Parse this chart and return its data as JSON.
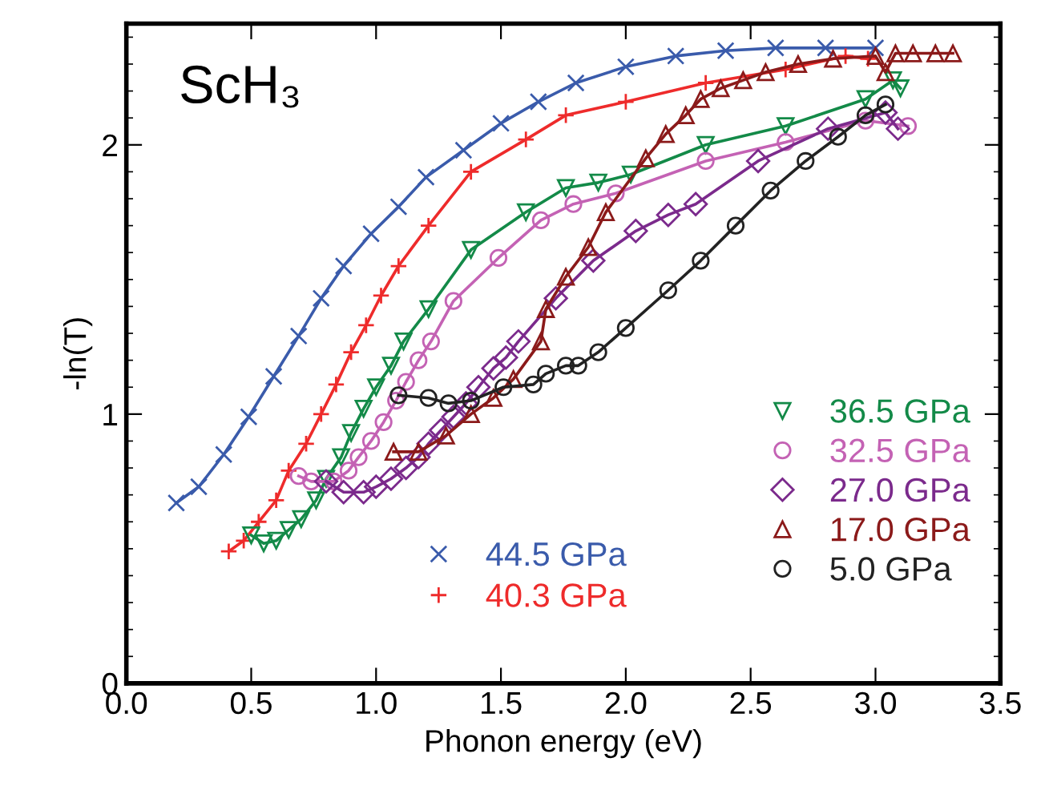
{
  "chart_data": {
    "type": "line",
    "xlabel": "Phonon energy (eV)",
    "ylabel": "-ln(T)",
    "xlim": [
      0,
      3.5
    ],
    "xticks": [
      {
        "value": 0,
        "label": "0.0"
      },
      0.5,
      {
        "value": 1,
        "label": "1.0"
      },
      1.5,
      {
        "value": 2,
        "label": "2.0"
      },
      2.5,
      {
        "value": 3,
        "label": "3.0"
      },
      3.5
    ],
    "ylim": [
      0,
      2.45
    ],
    "yticks": [
      0,
      1,
      2
    ],
    "grid": false,
    "legend": "bottom right",
    "annotations": [
      "ScH₃"
    ],
    "series": [
      {
        "name": "44.5 GPa",
        "color": "#3a5bab",
        "marker": "x",
        "x": [
          0.2,
          0.29,
          0.39,
          0.49,
          0.59,
          0.69,
          0.78,
          0.87,
          0.98,
          1.09,
          1.2,
          1.35,
          1.5,
          1.65,
          1.8,
          2.0,
          2.2,
          2.4,
          2.6,
          2.8,
          3.0
        ],
        "values": [
          0.67,
          0.73,
          0.85,
          0.99,
          1.14,
          1.29,
          1.43,
          1.55,
          1.67,
          1.77,
          1.88,
          1.98,
          2.08,
          2.16,
          2.23,
          2.29,
          2.33,
          2.35,
          2.36,
          2.36,
          2.36
        ]
      },
      {
        "name": "40.3 GPa",
        "color": "#ee2b2b",
        "marker": "plus",
        "x": [
          0.41,
          0.47,
          0.53,
          0.6,
          0.65,
          0.72,
          0.78,
          0.84,
          0.9,
          0.96,
          1.02,
          1.09,
          1.21,
          1.38,
          1.6,
          1.76,
          2.0,
          2.32,
          2.64,
          2.88,
          2.97
        ],
        "values": [
          0.49,
          0.53,
          0.6,
          0.68,
          0.79,
          0.89,
          1.0,
          1.11,
          1.23,
          1.33,
          1.44,
          1.55,
          1.7,
          1.9,
          2.02,
          2.11,
          2.16,
          2.23,
          2.28,
          2.33,
          2.32
        ]
      },
      {
        "name": "36.5 GPa",
        "color": "#138a48",
        "marker": "triangle_down",
        "x": [
          0.5,
          0.55,
          0.6,
          0.65,
          0.7,
          0.76,
          0.8,
          0.86,
          0.9,
          0.95,
          1.0,
          1.06,
          1.11,
          1.21,
          1.38,
          1.6,
          1.76,
          1.89,
          2.02,
          2.32,
          2.64,
          2.96,
          3.07,
          3.1
        ],
        "values": [
          0.55,
          0.52,
          0.53,
          0.57,
          0.61,
          0.68,
          0.76,
          0.84,
          0.93,
          1.02,
          1.1,
          1.18,
          1.27,
          1.39,
          1.61,
          1.75,
          1.84,
          1.86,
          1.89,
          2.0,
          2.07,
          2.17,
          2.24,
          2.21
        ]
      },
      {
        "name": "32.5 GPa",
        "color": "#c462b4",
        "marker": "circle",
        "x": [
          0.69,
          0.74,
          0.83,
          0.89,
          0.93,
          0.98,
          1.03,
          1.08,
          1.12,
          1.17,
          1.22,
          1.31,
          1.49,
          1.66,
          1.79,
          1.96,
          2.32,
          2.64,
          2.96,
          3.13
        ],
        "values": [
          0.77,
          0.75,
          0.75,
          0.79,
          0.84,
          0.9,
          0.97,
          1.05,
          1.12,
          1.2,
          1.27,
          1.42,
          1.58,
          1.72,
          1.78,
          1.82,
          1.94,
          2.01,
          2.09,
          2.07
        ]
      },
      {
        "name": "27.0 GPa",
        "color": "#7b2a8c",
        "marker": "diamond",
        "x": [
          0.8,
          0.87,
          0.95,
          1.0,
          1.06,
          1.12,
          1.17,
          1.21,
          1.26,
          1.31,
          1.36,
          1.41,
          1.47,
          1.52,
          1.57,
          1.72,
          1.87,
          2.04,
          2.17,
          2.28,
          2.53,
          2.81,
          3.04,
          3.09
        ],
        "values": [
          0.75,
          0.71,
          0.71,
          0.73,
          0.76,
          0.8,
          0.84,
          0.89,
          0.94,
          0.99,
          1.04,
          1.1,
          1.17,
          1.21,
          1.27,
          1.43,
          1.57,
          1.68,
          1.74,
          1.78,
          1.94,
          2.06,
          2.12,
          2.06
        ]
      },
      {
        "name": "17.0 GPa",
        "color": "#8b1a1a",
        "marker": "triangle",
        "x": [
          1.07,
          1.17,
          1.28,
          1.38,
          1.47,
          1.55,
          1.66,
          1.68,
          1.76,
          1.85,
          1.92,
          2.08,
          2.16,
          2.24,
          2.3,
          2.38,
          2.47,
          2.56,
          2.69,
          2.83,
          3.0,
          3.04,
          3.08,
          3.15,
          3.24,
          3.31
        ],
        "values": [
          0.86,
          0.86,
          0.92,
          1.0,
          1.06,
          1.13,
          1.27,
          1.39,
          1.51,
          1.62,
          1.75,
          1.95,
          2.04,
          2.11,
          2.17,
          2.21,
          2.24,
          2.27,
          2.3,
          2.32,
          2.33,
          2.27,
          2.34,
          2.34,
          2.34,
          2.34
        ]
      },
      {
        "name": "5.0 GPa",
        "color": "#222222",
        "marker": "circle",
        "x": [
          1.09,
          1.21,
          1.29,
          1.38,
          1.51,
          1.63,
          1.68,
          1.76,
          1.81,
          1.89,
          2.0,
          2.17,
          2.3,
          2.44,
          2.58,
          2.72,
          2.85,
          2.96,
          3.04
        ],
        "values": [
          1.07,
          1.06,
          1.04,
          1.05,
          1.1,
          1.11,
          1.15,
          1.18,
          1.18,
          1.23,
          1.32,
          1.46,
          1.57,
          1.7,
          1.83,
          1.94,
          2.03,
          2.11,
          2.15
        ]
      }
    ]
  }
}
